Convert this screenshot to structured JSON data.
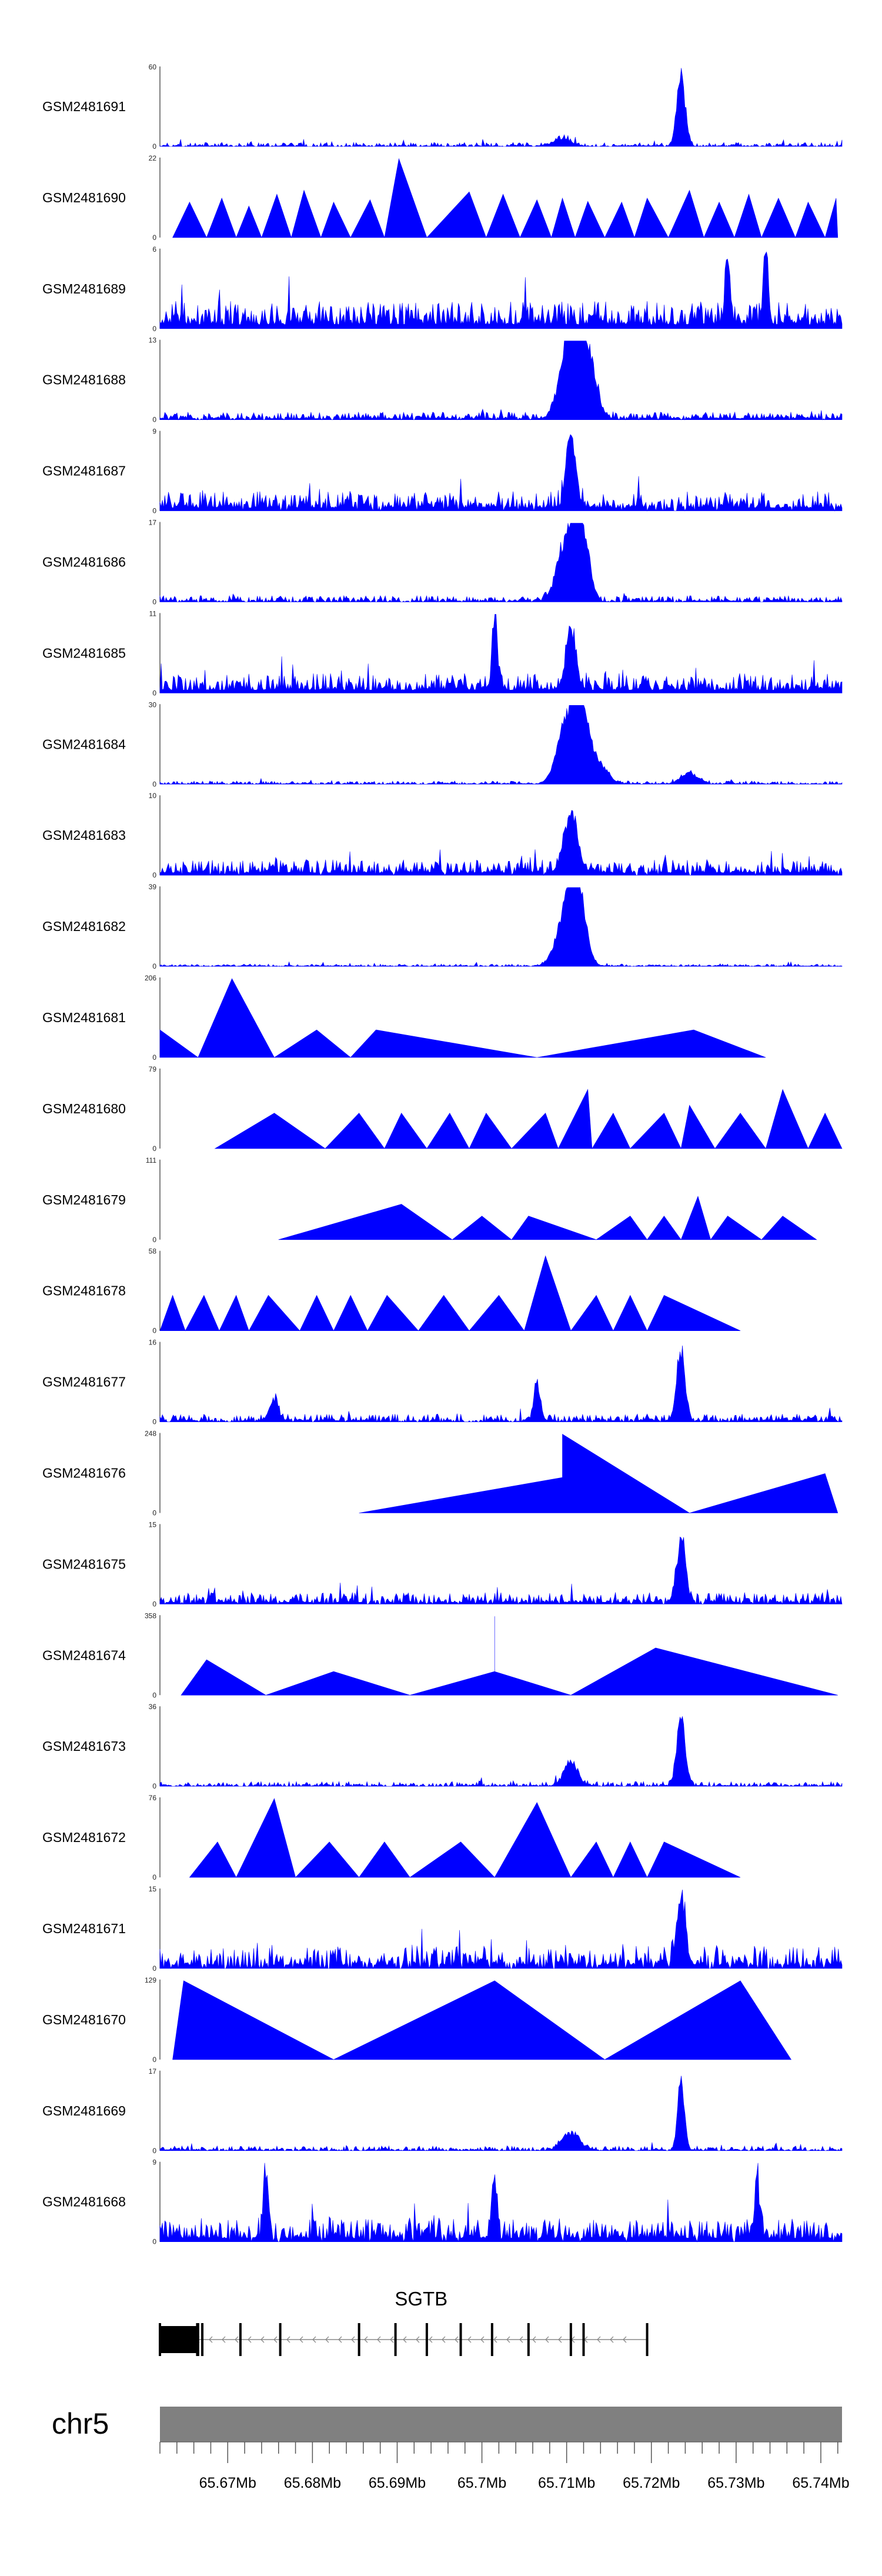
{
  "chart_data": {
    "type": "area",
    "title": "",
    "chromosome": "chr5",
    "gene": "SGTB",
    "strand": "-",
    "color": "#0000FF",
    "xlim": [
      65.662,
      65.7425
    ],
    "x_ticks": [
      65.67,
      65.68,
      65.69,
      65.7,
      65.71,
      65.72,
      65.73,
      65.74
    ],
    "x_tick_labels": [
      "65.67Mb",
      "65.68Mb",
      "65.69Mb",
      "65.7Mb",
      "65.71Mb",
      "65.72Mb",
      "65.73Mb",
      "65.74Mb"
    ],
    "gene_model": {
      "start": 65.662,
      "end": 65.7195,
      "exons": [
        65.662,
        65.6665,
        65.6664,
        65.667,
        65.6715,
        65.6762,
        65.6855,
        65.6898,
        65.6935,
        65.6975,
        65.7012,
        65.7055,
        65.7105,
        65.712,
        65.7195
      ],
      "utr": [
        65.662,
        65.6665
      ]
    },
    "tracks": [
      {
        "name": "GSM2481691",
        "ymax": 60,
        "style": "dense",
        "seed": 11,
        "base": 0.05,
        "density": 0.7,
        "peaks": [
          [
            65.7235,
            1.0,
            0.0005
          ],
          [
            65.7095,
            0.12,
            0.001
          ]
        ]
      },
      {
        "name": "GSM2481690",
        "ymax": 22,
        "style": "sparse",
        "points": [
          [
            65.6635,
            0
          ],
          [
            65.6655,
            0.45
          ],
          [
            65.6675,
            0
          ],
          [
            65.6693,
            0.5
          ],
          [
            65.671,
            0
          ],
          [
            65.6725,
            0.4
          ],
          [
            65.674,
            0
          ],
          [
            65.6758,
            0.55
          ],
          [
            65.6775,
            0
          ],
          [
            65.679,
            0.6
          ],
          [
            65.681,
            0
          ],
          [
            65.6825,
            0.45
          ],
          [
            65.6845,
            0
          ],
          [
            65.6868,
            0.48
          ],
          [
            65.6885,
            0
          ],
          [
            65.6902,
            1.0
          ],
          [
            65.6935,
            0
          ],
          [
            65.6985,
            0.58
          ],
          [
            65.7005,
            0
          ],
          [
            65.7025,
            0.55
          ],
          [
            65.7045,
            0
          ],
          [
            65.7065,
            0.48
          ],
          [
            65.7082,
            0
          ],
          [
            65.7095,
            0.5
          ],
          [
            65.711,
            0
          ],
          [
            65.7125,
            0.46
          ],
          [
            65.7145,
            0
          ],
          [
            65.7165,
            0.45
          ],
          [
            65.718,
            0
          ],
          [
            65.7195,
            0.5
          ],
          [
            65.722,
            0
          ],
          [
            65.7245,
            0.6
          ],
          [
            65.7262,
            0
          ],
          [
            65.728,
            0.45
          ],
          [
            65.7298,
            0
          ],
          [
            65.7315,
            0.55
          ],
          [
            65.733,
            0
          ],
          [
            65.735,
            0.5
          ],
          [
            65.737,
            0
          ],
          [
            65.7385,
            0.45
          ],
          [
            65.7405,
            0
          ],
          [
            65.7418,
            0.5
          ],
          [
            65.742,
            0
          ]
        ]
      },
      {
        "name": "GSM2481689",
        "ymax": 6,
        "style": "dense",
        "seed": 23,
        "base": 0.35,
        "density": 1.0,
        "peaks": [
          [
            65.729,
            0.9,
            0.0003
          ],
          [
            65.7335,
            0.95,
            0.0003
          ]
        ]
      },
      {
        "name": "GSM2481688",
        "ymax": 13,
        "style": "dense",
        "seed": 31,
        "base": 0.1,
        "density": 0.9,
        "peaks": [
          [
            65.7103,
            1.0,
            0.001
          ],
          [
            65.7115,
            0.75,
            0.0012
          ],
          [
            65.7128,
            0.45,
            0.0008
          ]
        ]
      },
      {
        "name": "GSM2481687",
        "ymax": 9,
        "style": "dense",
        "seed": 37,
        "base": 0.25,
        "density": 0.95,
        "peaks": [
          [
            65.7105,
            0.95,
            0.0006
          ]
        ]
      },
      {
        "name": "GSM2481686",
        "ymax": 17,
        "style": "dense",
        "seed": 41,
        "base": 0.08,
        "density": 0.85,
        "peaks": [
          [
            65.7103,
            1.0,
            0.0012
          ],
          [
            65.7118,
            0.85,
            0.0008
          ]
        ]
      },
      {
        "name": "GSM2481685",
        "ymax": 11,
        "style": "dense",
        "seed": 43,
        "base": 0.25,
        "density": 1.0,
        "peaks": [
          [
            65.7015,
            1.0,
            0.0003
          ],
          [
            65.7105,
            0.8,
            0.0006
          ]
        ]
      },
      {
        "name": "GSM2481684",
        "ymax": 30,
        "style": "dense",
        "seed": 47,
        "base": 0.04,
        "density": 0.8,
        "peaks": [
          [
            65.7103,
            1.0,
            0.0012
          ],
          [
            65.7118,
            0.7,
            0.0008
          ],
          [
            65.7135,
            0.3,
            0.0012
          ],
          [
            65.7245,
            0.15,
            0.001
          ]
        ]
      },
      {
        "name": "GSM2481683",
        "ymax": 10,
        "style": "dense",
        "seed": 53,
        "base": 0.2,
        "density": 0.95,
        "peaks": [
          [
            65.7105,
            0.8,
            0.0008
          ]
        ]
      },
      {
        "name": "GSM2481682",
        "ymax": 39,
        "style": "dense",
        "seed": 59,
        "base": 0.03,
        "density": 0.8,
        "peaks": [
          [
            65.7103,
            1.0,
            0.0012
          ],
          [
            65.7115,
            0.65,
            0.0008
          ]
        ]
      },
      {
        "name": "GSM2481681",
        "ymax": 206,
        "style": "sparse",
        "points": [
          [
            65.662,
            0.35
          ],
          [
            65.6665,
            0
          ],
          [
            65.6705,
            1.0
          ],
          [
            65.6755,
            0
          ],
          [
            65.6805,
            0.35
          ],
          [
            65.6845,
            0
          ],
          [
            65.6875,
            0.35
          ],
          [
            65.7065,
            0
          ],
          [
            65.725,
            0.35
          ],
          [
            65.7335,
            0
          ]
        ]
      },
      {
        "name": "GSM2481680",
        "ymax": 79,
        "style": "sparse",
        "points": [
          [
            65.6685,
            0
          ],
          [
            65.6755,
            0.45
          ],
          [
            65.6815,
            0
          ],
          [
            65.6855,
            0.45
          ],
          [
            65.6885,
            0
          ],
          [
            65.6905,
            0.45
          ],
          [
            65.6935,
            0
          ],
          [
            65.6962,
            0.45
          ],
          [
            65.6985,
            0
          ],
          [
            65.7005,
            0.45
          ],
          [
            65.7035,
            0
          ],
          [
            65.7075,
            0.45
          ],
          [
            65.709,
            0
          ],
          [
            65.7125,
            0.75
          ],
          [
            65.713,
            0
          ],
          [
            65.7155,
            0.45
          ],
          [
            65.7175,
            0
          ],
          [
            65.7215,
            0.45
          ],
          [
            65.7235,
            0
          ],
          [
            65.7245,
            0.55
          ],
          [
            65.7275,
            0
          ],
          [
            65.7305,
            0.45
          ],
          [
            65.7335,
            0
          ],
          [
            65.7355,
            0.75
          ],
          [
            65.7385,
            0
          ],
          [
            65.7405,
            0.45
          ],
          [
            65.7425,
            0
          ]
        ]
      },
      {
        "name": "GSM2481679",
        "ymax": 111,
        "style": "sparse",
        "points": [
          [
            65.676,
            0
          ],
          [
            65.6905,
            0.45
          ],
          [
            65.6965,
            0
          ],
          [
            65.7,
            0.3
          ],
          [
            65.7035,
            0
          ],
          [
            65.7055,
            0.3
          ],
          [
            65.7135,
            0
          ],
          [
            65.7175,
            0.3
          ],
          [
            65.7195,
            0
          ],
          [
            65.7215,
            0.3
          ],
          [
            65.7235,
            0
          ],
          [
            65.7255,
            0.55
          ],
          [
            65.727,
            0
          ],
          [
            65.729,
            0.3
          ],
          [
            65.733,
            0
          ],
          [
            65.7355,
            0.3
          ],
          [
            65.7395,
            0
          ]
        ]
      },
      {
        "name": "GSM2481678",
        "ymax": 58,
        "style": "sparse",
        "points": [
          [
            65.662,
            0
          ],
          [
            65.6635,
            0.45
          ],
          [
            65.665,
            0
          ],
          [
            65.6672,
            0.45
          ],
          [
            65.669,
            0
          ],
          [
            65.671,
            0.45
          ],
          [
            65.6725,
            0
          ],
          [
            65.6748,
            0.45
          ],
          [
            65.6785,
            0
          ],
          [
            65.6805,
            0.45
          ],
          [
            65.6825,
            0
          ],
          [
            65.6845,
            0.45
          ],
          [
            65.6865,
            0
          ],
          [
            65.6888,
            0.45
          ],
          [
            65.6925,
            0
          ],
          [
            65.6955,
            0.45
          ],
          [
            65.6985,
            0
          ],
          [
            65.702,
            0.45
          ],
          [
            65.705,
            0
          ],
          [
            65.7075,
            0.95
          ],
          [
            65.7105,
            0
          ],
          [
            65.7135,
            0.45
          ],
          [
            65.7155,
            0
          ],
          [
            65.7175,
            0.45
          ],
          [
            65.7195,
            0
          ],
          [
            65.7215,
            0.45
          ],
          [
            65.7305,
            0
          ]
        ]
      },
      {
        "name": "GSM2481677",
        "ymax": 16,
        "style": "dense",
        "seed": 61,
        "base": 0.1,
        "density": 0.85,
        "peaks": [
          [
            65.7235,
            1.0,
            0.0005
          ],
          [
            65.7065,
            0.5,
            0.0004
          ],
          [
            65.6755,
            0.3,
            0.0005
          ]
        ]
      },
      {
        "name": "GSM2481676",
        "ymax": 248,
        "style": "sparse",
        "points": [
          [
            65.6855,
            0
          ],
          [
            65.7095,
            0.45
          ],
          [
            65.7095,
            1.0
          ],
          [
            65.7245,
            0
          ],
          [
            65.7405,
            0.5
          ],
          [
            65.742,
            0
          ]
        ]
      },
      {
        "name": "GSM2481675",
        "ymax": 15,
        "style": "dense",
        "seed": 67,
        "base": 0.15,
        "density": 0.9,
        "peaks": [
          [
            65.7235,
            0.95,
            0.0005
          ]
        ]
      },
      {
        "name": "GSM2481674",
        "ymax": 358,
        "style": "sparse",
        "points": [
          [
            65.6645,
            0
          ],
          [
            65.6675,
            0.45
          ],
          [
            65.6745,
            0
          ],
          [
            65.6825,
            0.3
          ],
          [
            65.6915,
            0
          ],
          [
            65.7015,
            0.3
          ],
          [
            65.7015,
            1.0
          ],
          [
            65.7015,
            0.3
          ],
          [
            65.7105,
            0
          ],
          [
            65.7205,
            0.6
          ],
          [
            65.742,
            0
          ]
        ]
      },
      {
        "name": "GSM2481673",
        "ymax": 36,
        "style": "dense",
        "seed": 71,
        "base": 0.06,
        "density": 0.75,
        "peaks": [
          [
            65.7235,
            1.0,
            0.0005
          ],
          [
            65.7105,
            0.35,
            0.0008
          ]
        ]
      },
      {
        "name": "GSM2481672",
        "ymax": 76,
        "style": "sparse",
        "points": [
          [
            65.6655,
            0
          ],
          [
            65.6688,
            0.45
          ],
          [
            65.671,
            0
          ],
          [
            65.6755,
            1.0
          ],
          [
            65.678,
            0
          ],
          [
            65.682,
            0.45
          ],
          [
            65.6855,
            0
          ],
          [
            65.6885,
            0.45
          ],
          [
            65.6915,
            0
          ],
          [
            65.6975,
            0.45
          ],
          [
            65.7015,
            0
          ],
          [
            65.7065,
            0.95
          ],
          [
            65.7105,
            0
          ],
          [
            65.7135,
            0.45
          ],
          [
            65.7155,
            0
          ],
          [
            65.7175,
            0.45
          ],
          [
            65.7195,
            0
          ],
          [
            65.7215,
            0.45
          ],
          [
            65.7305,
            0
          ]
        ]
      },
      {
        "name": "GSM2481671",
        "ymax": 15,
        "style": "dense",
        "seed": 73,
        "base": 0.3,
        "density": 0.85,
        "peaks": [
          [
            65.7235,
            1.0,
            0.0005
          ]
        ]
      },
      {
        "name": "GSM2481670",
        "ymax": 129,
        "style": "sparse",
        "points": [
          [
            65.6635,
            0
          ],
          [
            65.6648,
            1.0
          ],
          [
            65.6825,
            0
          ],
          [
            65.7015,
            1.0
          ],
          [
            65.7145,
            0
          ],
          [
            65.7305,
            1.0
          ],
          [
            65.7365,
            0
          ]
        ]
      },
      {
        "name": "GSM2481669",
        "ymax": 17,
        "style": "dense",
        "seed": 79,
        "base": 0.06,
        "density": 0.8,
        "peaks": [
          [
            65.7235,
            1.0,
            0.0004
          ],
          [
            65.7105,
            0.25,
            0.001
          ]
        ]
      },
      {
        "name": "GSM2481668",
        "ymax": 9,
        "style": "dense",
        "seed": 83,
        "base": 0.3,
        "density": 0.95,
        "peaks": [
          [
            65.6745,
            0.9,
            0.0003
          ],
          [
            65.7015,
            0.85,
            0.0003
          ],
          [
            65.7325,
            0.8,
            0.0003
          ]
        ]
      }
    ]
  }
}
